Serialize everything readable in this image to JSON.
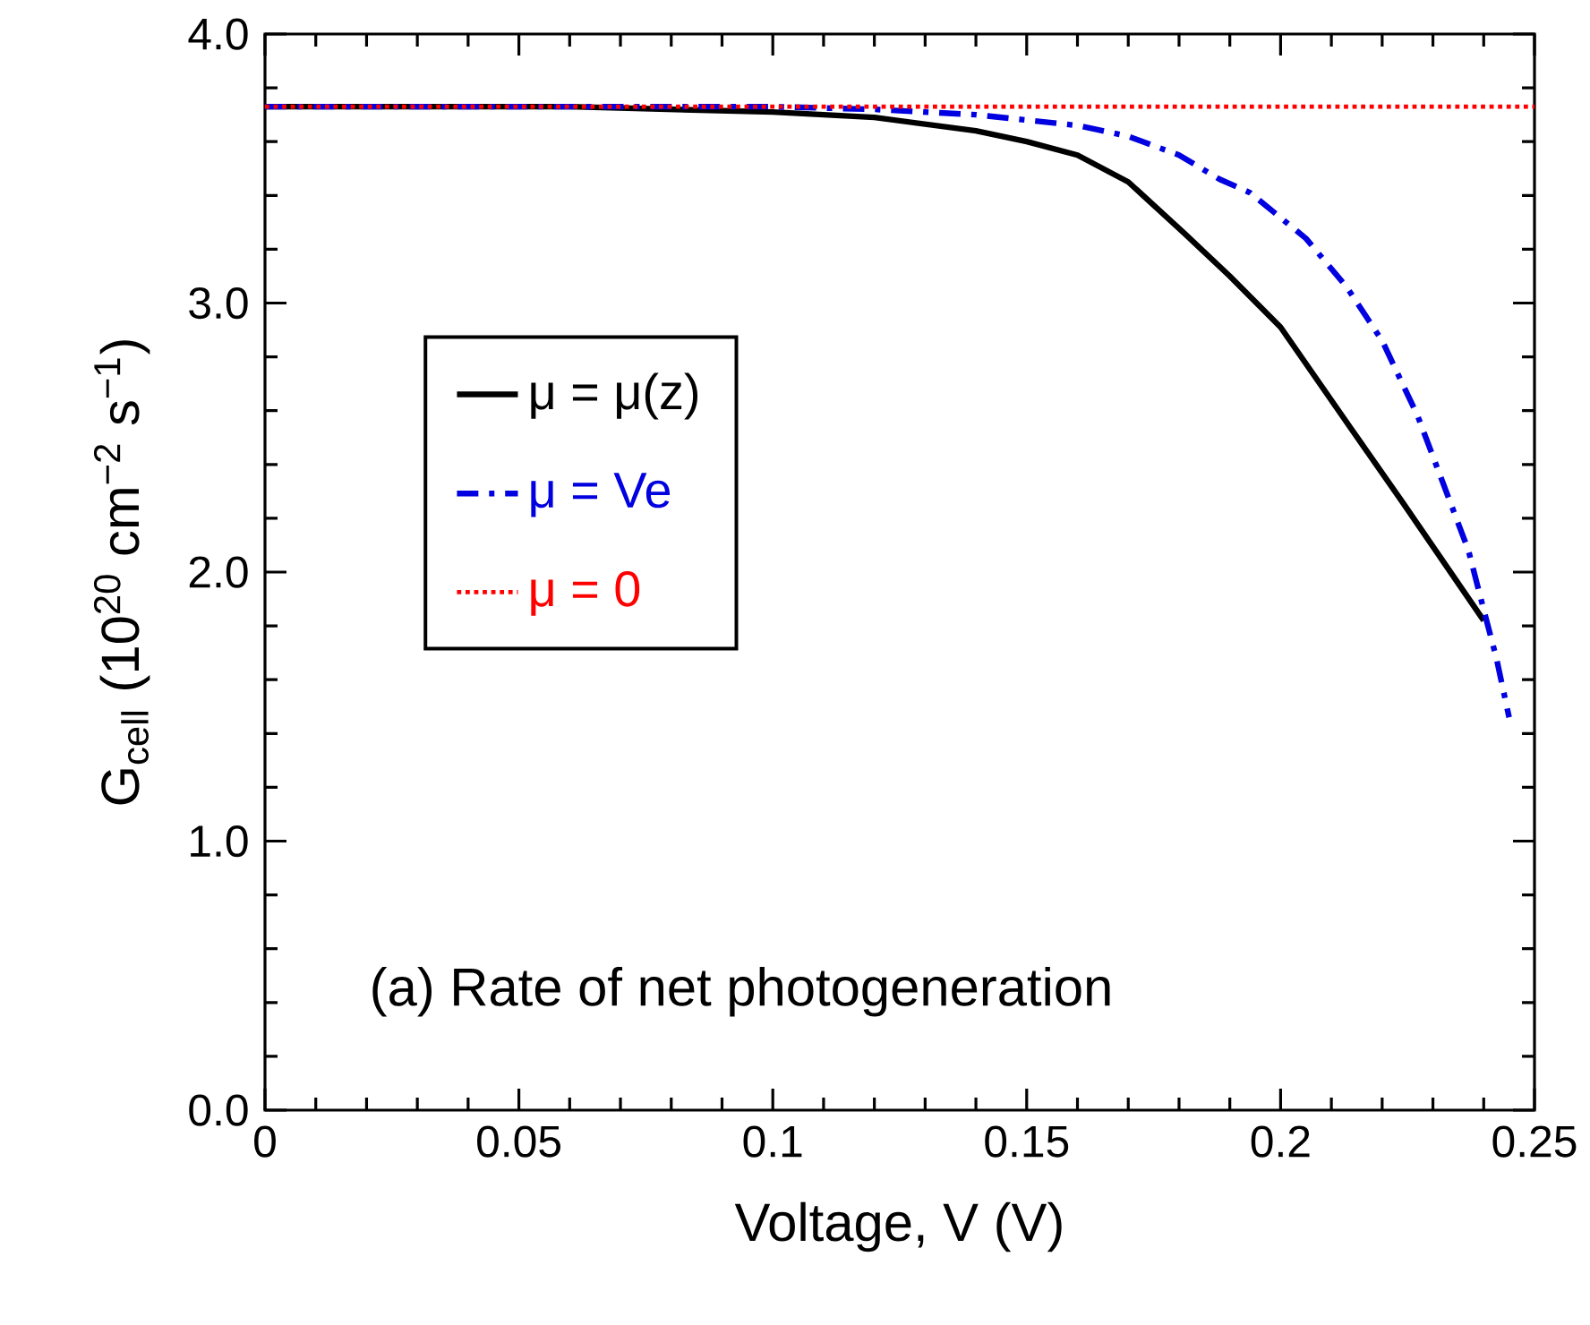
{
  "chart_data": {
    "type": "line",
    "xlabel": "Voltage, V (V)",
    "ylabel": "G$_{cell}$ (10$^{20}$ cm$^{−2}$ s$^{−1}$)",
    "xlim": [
      0,
      0.25
    ],
    "ylim": [
      0,
      4.0
    ],
    "xticks": [
      {
        "value": 0,
        "label": "0"
      },
      0.05,
      0.1,
      0.15,
      0.2,
      0.25
    ],
    "yticks": [
      {
        "value": 0,
        "label": "0.0"
      },
      {
        "value": 1,
        "label": "1.0"
      },
      {
        "value": 2,
        "label": "2.0"
      },
      {
        "value": 3,
        "label": "3.0"
      },
      {
        "value": 4,
        "label": "4.0"
      }
    ],
    "grid": false,
    "legend": "left",
    "marker": "none",
    "annotations": [
      "(a) Rate of net photogeneration"
    ],
    "series": [
      {
        "name": "μ = μ(z)",
        "color": "#000000",
        "line_style": "solid",
        "x": [
          0,
          0.06,
          0.1,
          0.12,
          0.14,
          0.15,
          0.16,
          0.17,
          0.181,
          0.19,
          0.2,
          0.214,
          0.224,
          0.232,
          0.24
        ],
        "values": [
          3.73,
          3.73,
          3.71,
          3.69,
          3.64,
          3.6,
          3.55,
          3.45,
          3.26,
          3.1,
          2.91,
          2.53,
          2.26,
          2.04,
          1.82
        ]
      },
      {
        "name": "μ = Ve",
        "color": "#0000e0",
        "line_style": "dashed",
        "x": [
          0,
          0.1,
          0.12,
          0.14,
          0.16,
          0.17,
          0.18,
          0.188,
          0.194,
          0.205,
          0.213,
          0.22,
          0.227,
          0.233,
          0.237,
          0.24,
          0.2425,
          0.245
        ],
        "values": [
          3.73,
          3.73,
          3.72,
          3.7,
          3.66,
          3.62,
          3.55,
          3.46,
          3.41,
          3.24,
          3.06,
          2.86,
          2.58,
          2.28,
          2.08,
          1.86,
          1.68,
          1.46
        ]
      },
      {
        "name": "μ = 0",
        "color": "#ff0000",
        "line_style": "dotted",
        "x": [
          0,
          0.25
        ],
        "values": [
          3.73,
          3.73
        ]
      }
    ]
  }
}
